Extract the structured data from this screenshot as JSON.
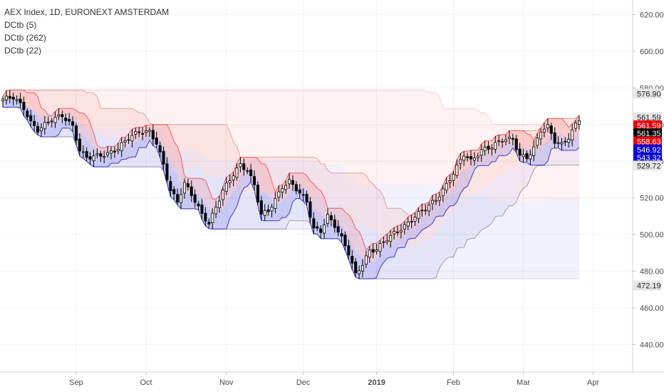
{
  "legend": {
    "title": "AEX Index, 1D, EURONEXT AMSTERDAM",
    "indicators": [
      "DCtb (5)",
      "DCtb (262)",
      "DCtb (22)"
    ]
  },
  "colors": {
    "up": "#ffffff",
    "down": "#000000",
    "wick": "#000000",
    "upper_band": "#f25c5c",
    "lower_band": "#3a3ac8",
    "upper_fill": "rgba(242,92,92,0.18)",
    "lower_fill": "rgba(80,80,220,0.18)",
    "long_upper_fill": "rgba(242,92,92,0.08)",
    "long_lower_fill": "rgba(120,120,230,0.10)",
    "grid": "#eef0f3",
    "axis_text": "#4a4a4a"
  },
  "chart_data": {
    "type": "candlestick",
    "title": "AEX Index, 1D, EURONEXT AMSTERDAM",
    "x_labels": [
      "Sep",
      "Oct",
      "Nov",
      "Dec",
      "2019",
      "Feb",
      "Mar",
      "Apr"
    ],
    "x_label_session_index": [
      21,
      41,
      64,
      86,
      107,
      129,
      149,
      169
    ],
    "ylim": [
      425,
      628
    ],
    "y_ticks": [
      620.0,
      600.0,
      580.0,
      560.0,
      540.0,
      520.0,
      500.0,
      480.0,
      460.0,
      440.0
    ],
    "y_tick_labels": [
      "620.00",
      "600.00",
      "580.00",
      "560.00",
      "540.00",
      "520.00",
      "500.00",
      "480.00",
      "460.00",
      "440.00"
    ],
    "price_tags": [
      {
        "label": "576.90",
        "value": 576.9,
        "bg": "#e6e6e6",
        "fg": "#222222"
      },
      {
        "label": "561.59",
        "value": 564.0,
        "bg": "#e6e6e6",
        "fg": "#222222"
      },
      {
        "label": "561.59",
        "value": 559.6,
        "bg": "#e8000b",
        "fg": "#ffffff"
      },
      {
        "label": "561.35",
        "value": 555.2,
        "bg": "#000000",
        "fg": "#ffffff"
      },
      {
        "label": "558.63",
        "value": 550.8,
        "bg": "#e8000b",
        "fg": "#ffffff"
      },
      {
        "label": "546.92",
        "value": 546.4,
        "bg": "#0000d8",
        "fg": "#ffffff"
      },
      {
        "label": "543.32",
        "value": 542.0,
        "bg": "#0000d8",
        "fg": "#ffffff"
      },
      {
        "label": "529.72",
        "value": 537.6,
        "bg": "#e6e6e6",
        "fg": "#222222"
      },
      {
        "label": "472.19",
        "value": 472.2,
        "bg": "#e6e6e6",
        "fg": "#222222"
      }
    ],
    "anchors": [
      [
        0,
        574
      ],
      [
        3,
        575
      ],
      [
        6,
        569
      ],
      [
        8,
        561
      ],
      [
        10,
        557
      ],
      [
        12,
        560
      ],
      [
        14,
        563
      ],
      [
        17,
        565
      ],
      [
        20,
        559
      ],
      [
        22,
        546
      ],
      [
        24,
        542
      ],
      [
        27,
        543
      ],
      [
        30,
        544
      ],
      [
        33,
        547
      ],
      [
        36,
        553
      ],
      [
        39,
        556
      ],
      [
        42,
        556
      ],
      [
        44,
        550
      ],
      [
        46,
        538
      ],
      [
        48,
        524
      ],
      [
        50,
        518
      ],
      [
        52,
        528
      ],
      [
        54,
        522
      ],
      [
        57,
        511
      ],
      [
        59,
        506
      ],
      [
        61,
        515
      ],
      [
        63,
        524
      ],
      [
        66,
        533
      ],
      [
        68,
        538
      ],
      [
        70,
        535
      ],
      [
        72,
        527
      ],
      [
        74,
        511
      ],
      [
        76,
        513
      ],
      [
        78,
        519
      ],
      [
        80,
        526
      ],
      [
        82,
        529
      ],
      [
        84,
        525
      ],
      [
        87,
        518
      ],
      [
        89,
        503
      ],
      [
        91,
        502
      ],
      [
        93,
        510
      ],
      [
        95,
        505
      ],
      [
        97,
        498
      ],
      [
        99,
        490
      ],
      [
        101,
        478
      ],
      [
        103,
        484
      ],
      [
        105,
        491
      ],
      [
        107,
        492
      ],
      [
        110,
        498
      ],
      [
        113,
        502
      ],
      [
        116,
        506
      ],
      [
        118,
        510
      ],
      [
        120,
        513
      ],
      [
        122,
        516
      ],
      [
        124,
        519
      ],
      [
        127,
        527
      ],
      [
        130,
        537
      ],
      [
        132,
        544
      ],
      [
        134,
        540
      ],
      [
        137,
        546
      ],
      [
        140,
        548
      ],
      [
        143,
        552
      ],
      [
        146,
        552
      ],
      [
        148,
        543
      ],
      [
        150,
        542
      ],
      [
        152,
        547
      ],
      [
        154,
        557
      ],
      [
        156,
        559
      ],
      [
        158,
        551
      ],
      [
        160,
        549
      ],
      [
        162,
        553
      ],
      [
        164,
        560
      ],
      [
        165,
        563
      ]
    ]
  }
}
